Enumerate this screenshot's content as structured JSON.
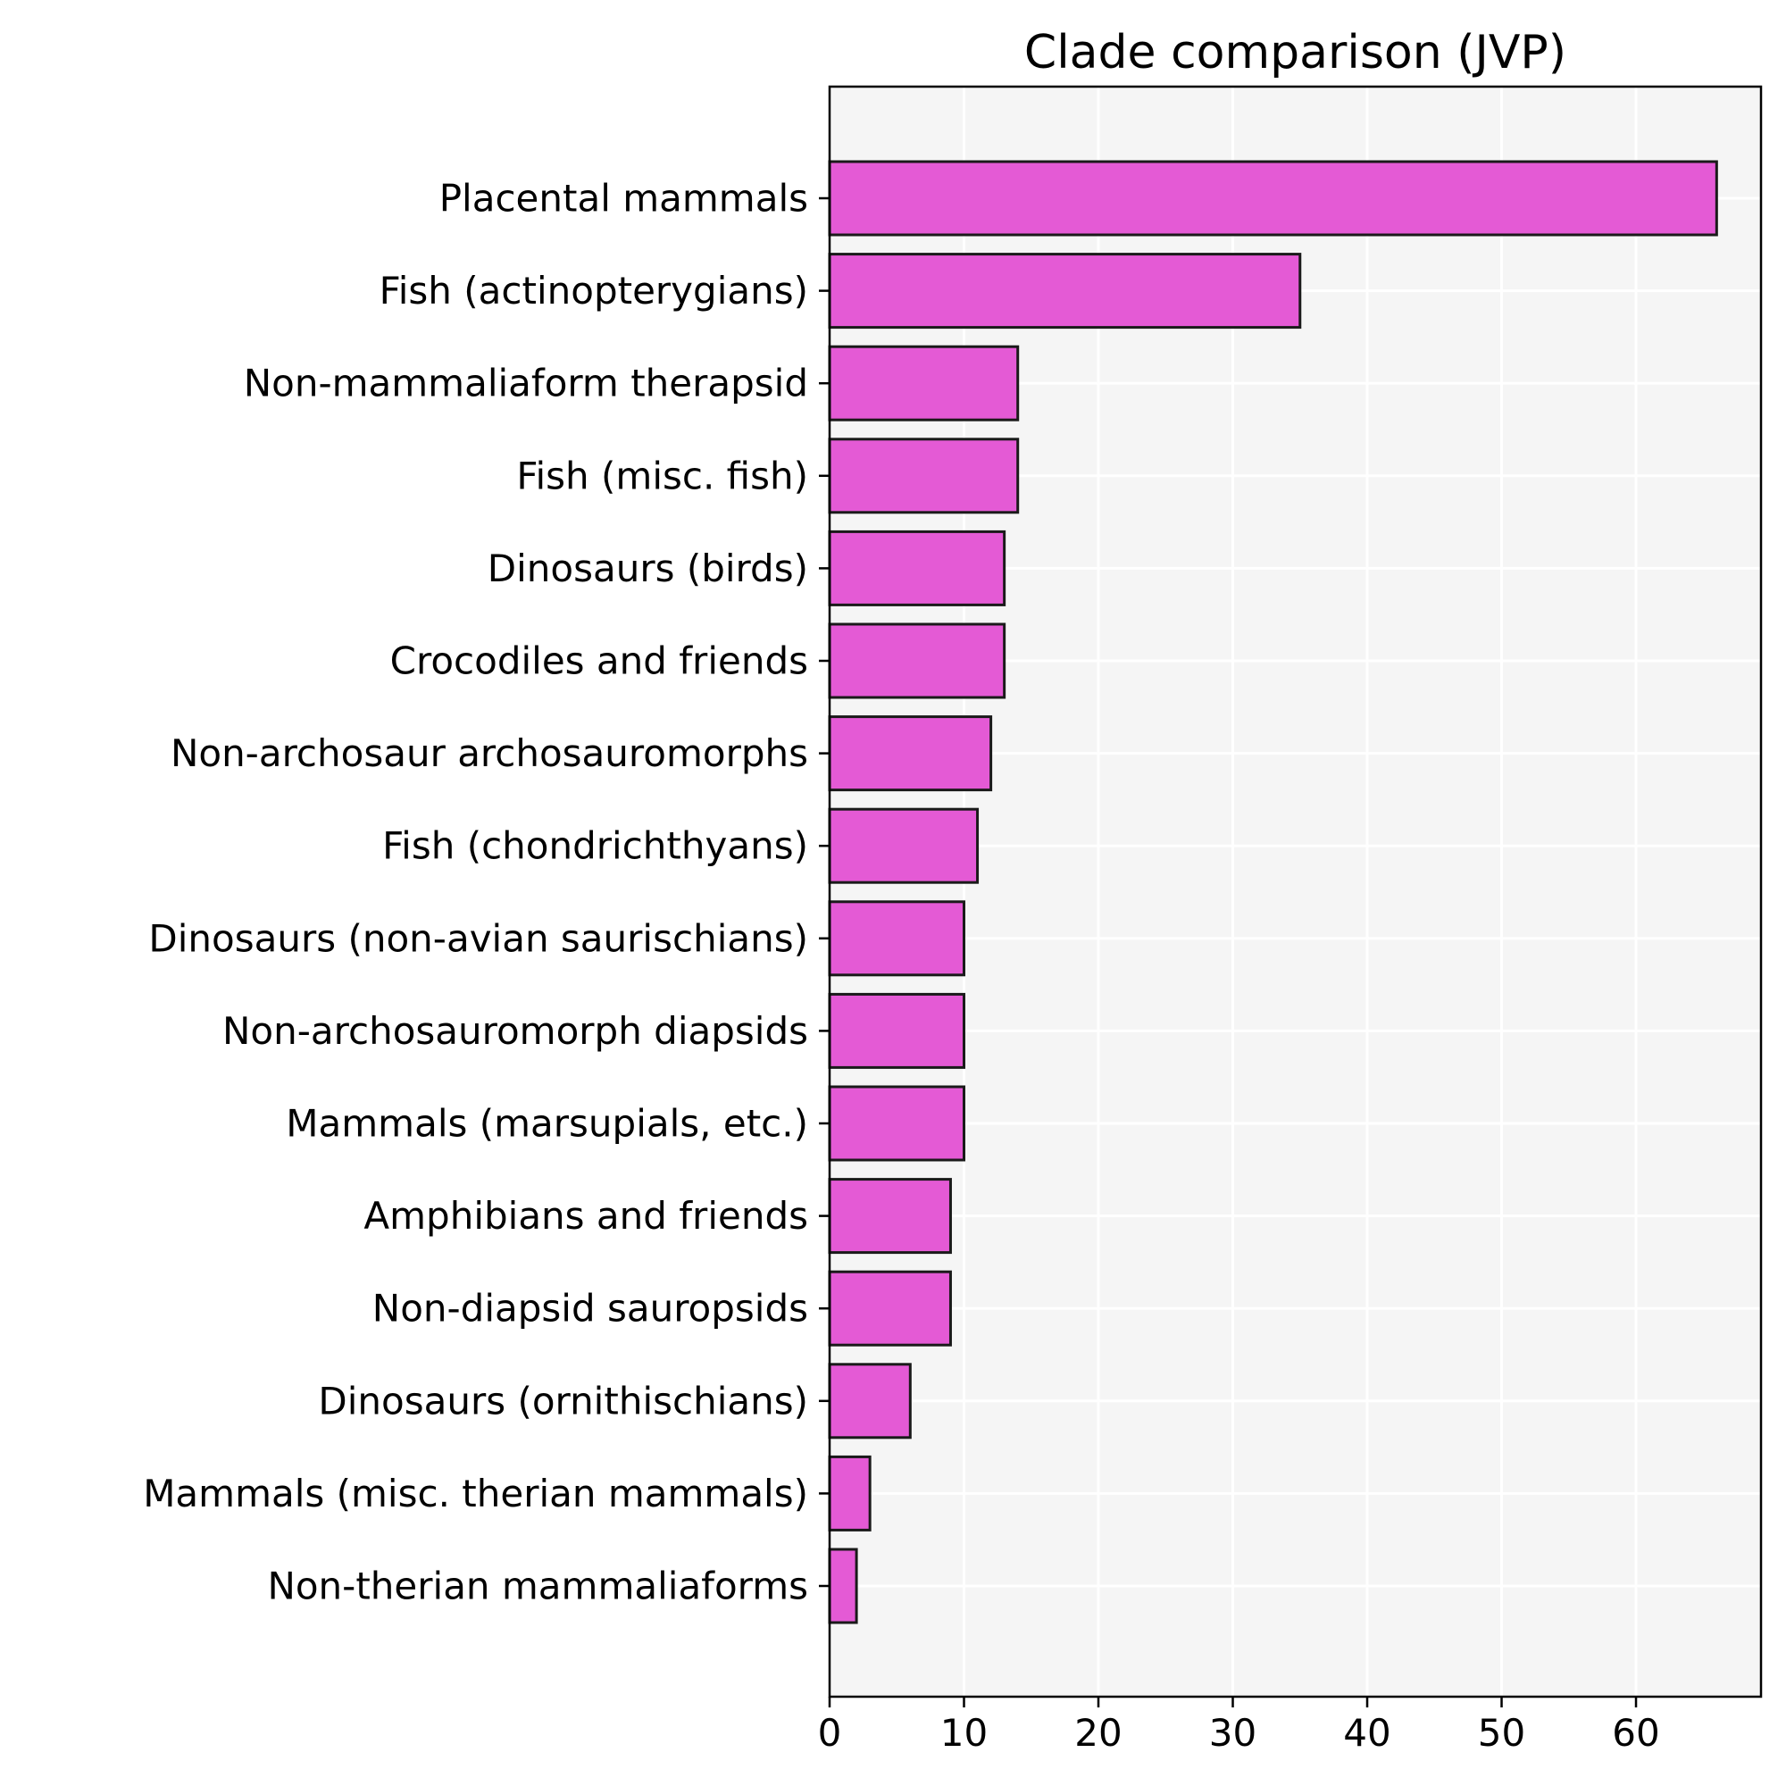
{
  "chart_data": {
    "type": "bar",
    "orientation": "horizontal",
    "title": "Clade comparison (JVP)",
    "xlabel": "",
    "ylabel": "",
    "categories": [
      "Placental mammals",
      "Fish (actinopterygians)",
      "Non-mammaliaform therapsid",
      "Fish (misc. fish)",
      "Dinosaurs (birds)",
      "Crocodiles and friends",
      "Non-archosaur archosauromorphs",
      "Fish (chondrichthyans)",
      "Dinosaurs (non-avian saurischians)",
      "Non-archosauromorph diapsids",
      "Mammals (marsupials, etc.)",
      "Amphibians and friends",
      "Non-diapsid sauropsids",
      "Dinosaurs (ornithischians)",
      "Mammals (misc. therian mammals)",
      "Non-therian mammaliaforms"
    ],
    "values": [
      66,
      35,
      14,
      14,
      13,
      13,
      12,
      11,
      10,
      10,
      10,
      9,
      9,
      6,
      3,
      2
    ],
    "xlim": [
      0,
      69.3
    ],
    "xticks": [
      0,
      10,
      20,
      30,
      40,
      50,
      60
    ],
    "grid": true,
    "colors": {
      "bar_fill": "#e45ad5",
      "bar_edge": "#1a1a1a",
      "plot_background": "#f5f5f5",
      "grid": "#ffffff",
      "axis": "#000000"
    }
  }
}
